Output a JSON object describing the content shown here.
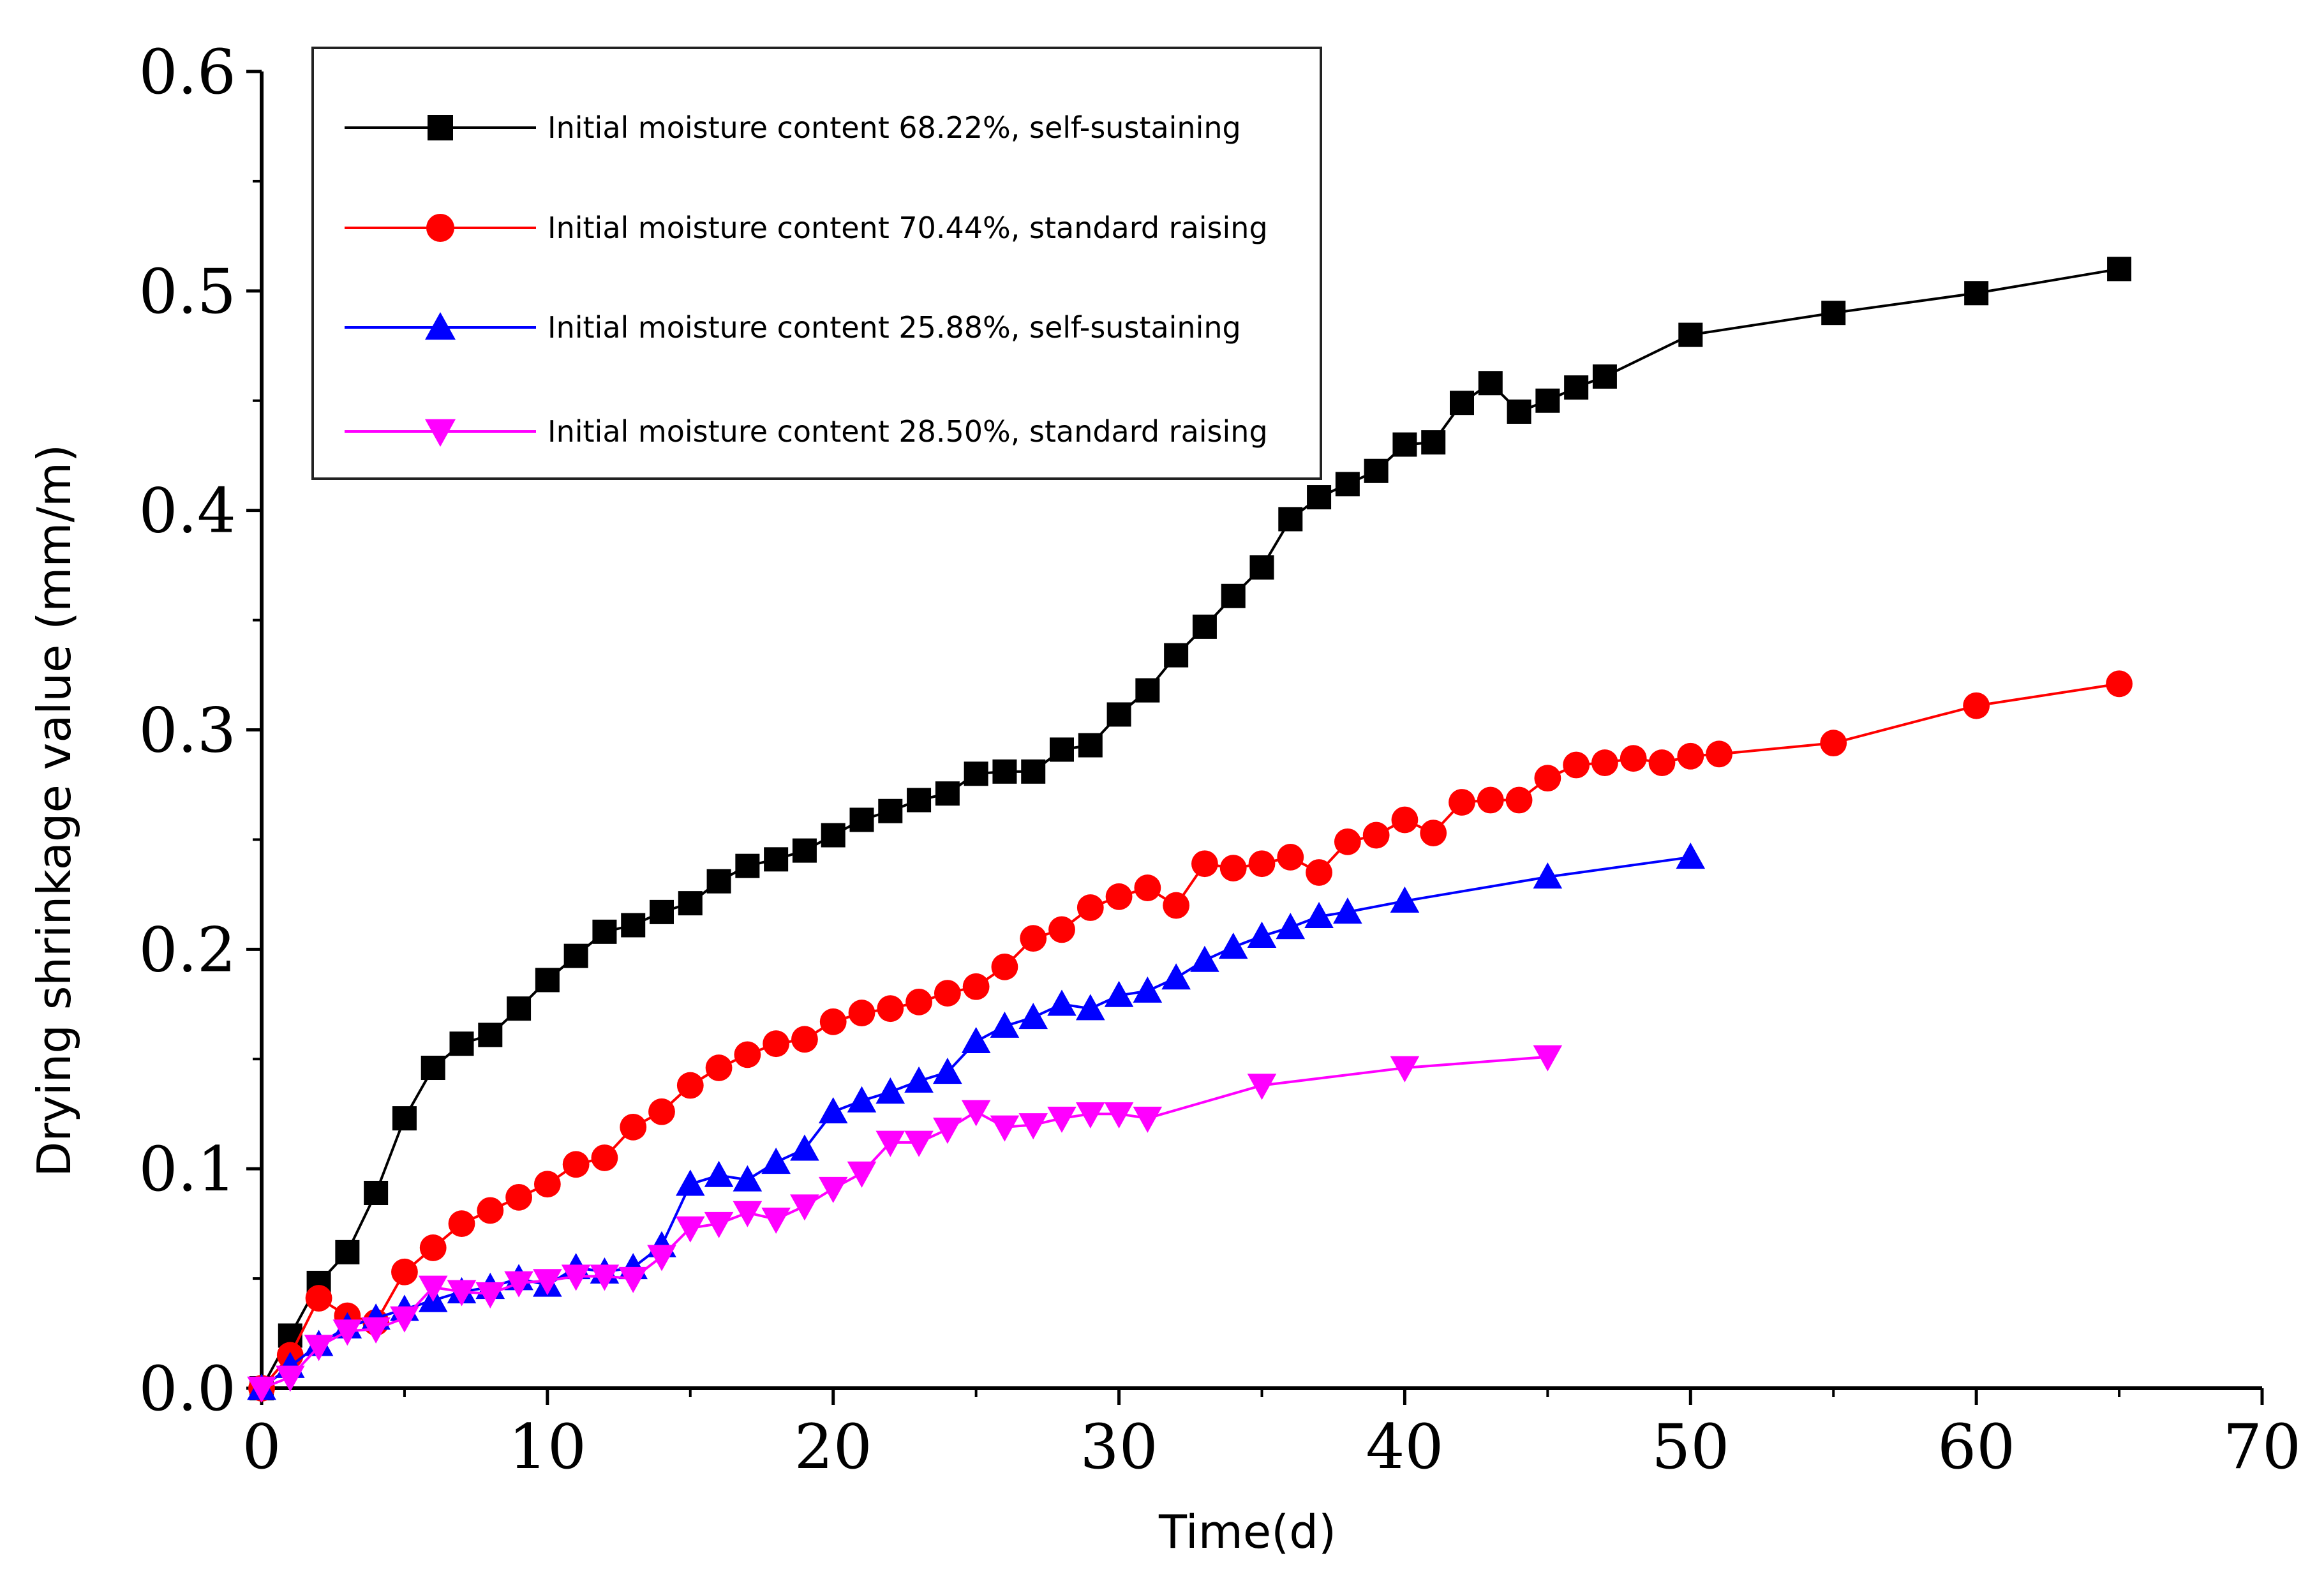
{
  "chart_data": {
    "type": "line",
    "title": "",
    "xlabel": "Time(d)",
    "ylabel": "Drying shrinkage value (mm/m)",
    "xlim": [
      0,
      70
    ],
    "ylim": [
      0,
      0.6
    ],
    "x_ticks": [
      0,
      10,
      20,
      30,
      40,
      50,
      60,
      70
    ],
    "y_ticks": [
      0.0,
      0.1,
      0.2,
      0.3,
      0.4,
      0.5,
      0.6
    ],
    "x_tick_labels": [
      "0",
      "10",
      "20",
      "30",
      "40",
      "50",
      "60",
      "70"
    ],
    "y_tick_labels": [
      "0.0",
      "0.1",
      "0.2",
      "0.3",
      "0.4",
      "0.5",
      "0.6"
    ],
    "grid": false,
    "legend_position": "top-left",
    "series": [
      {
        "name": "Initial moisture content 68.22%, self-sustaining",
        "color": "#000000",
        "marker": "square",
        "x": [
          0,
          1,
          2,
          3,
          4,
          5,
          6,
          7,
          8,
          9,
          10,
          11,
          12,
          13,
          14,
          15,
          16,
          17,
          18,
          19,
          20,
          21,
          22,
          23,
          24,
          25,
          26,
          27,
          28,
          29,
          30,
          31,
          32,
          33,
          34,
          35,
          36,
          37,
          38,
          39,
          40,
          41,
          42,
          43,
          44,
          45,
          46,
          47,
          50,
          55,
          60,
          65
        ],
        "y": [
          0.0,
          0.024,
          0.048,
          0.062,
          0.089,
          0.123,
          0.146,
          0.157,
          0.161,
          0.173,
          0.186,
          0.197,
          0.208,
          0.211,
          0.217,
          0.221,
          0.231,
          0.238,
          0.241,
          0.245,
          0.252,
          0.259,
          0.263,
          0.268,
          0.271,
          0.28,
          0.281,
          0.281,
          0.291,
          0.293,
          0.307,
          0.318,
          0.334,
          0.347,
          0.361,
          0.374,
          0.396,
          0.406,
          0.412,
          0.418,
          0.43,
          0.431,
          0.449,
          0.458,
          0.445,
          0.45,
          0.456,
          0.461,
          0.48,
          0.49,
          0.499,
          0.51
        ]
      },
      {
        "name": "Initial moisture content 70.44%, standard raising",
        "color": "#ff0000",
        "marker": "circle",
        "x": [
          0,
          1,
          2,
          3,
          4,
          5,
          6,
          7,
          8,
          9,
          10,
          11,
          12,
          13,
          14,
          15,
          16,
          17,
          18,
          19,
          20,
          21,
          22,
          23,
          24,
          25,
          26,
          27,
          28,
          29,
          30,
          31,
          32,
          33,
          34,
          35,
          36,
          37,
          38,
          39,
          40,
          41,
          42,
          43,
          44,
          45,
          46,
          47,
          48,
          49,
          50,
          51,
          55,
          60,
          65
        ],
        "y": [
          0.0,
          0.015,
          0.041,
          0.033,
          0.03,
          0.053,
          0.064,
          0.075,
          0.081,
          0.087,
          0.093,
          0.102,
          0.105,
          0.119,
          0.126,
          0.138,
          0.146,
          0.152,
          0.157,
          0.159,
          0.167,
          0.171,
          0.173,
          0.176,
          0.18,
          0.183,
          0.192,
          0.205,
          0.209,
          0.219,
          0.224,
          0.228,
          0.22,
          0.239,
          0.237,
          0.239,
          0.242,
          0.235,
          0.249,
          0.252,
          0.259,
          0.253,
          0.267,
          0.268,
          0.268,
          0.278,
          0.284,
          0.285,
          0.287,
          0.285,
          0.288,
          0.289,
          0.294,
          0.311,
          0.321
        ]
      },
      {
        "name": "Initial moisture content 25.88%, self-sustaining",
        "color": "#0000ff",
        "marker": "triangle-up",
        "x": [
          0,
          1,
          2,
          3,
          4,
          5,
          6,
          7,
          8,
          9,
          10,
          11,
          12,
          13,
          14,
          15,
          16,
          17,
          18,
          19,
          20,
          21,
          22,
          23,
          24,
          25,
          26,
          27,
          28,
          29,
          30,
          31,
          32,
          33,
          34,
          35,
          36,
          37,
          38,
          40,
          45,
          50
        ],
        "y": [
          0.0,
          0.01,
          0.02,
          0.028,
          0.032,
          0.036,
          0.04,
          0.044,
          0.046,
          0.05,
          0.047,
          0.055,
          0.053,
          0.055,
          0.065,
          0.093,
          0.097,
          0.095,
          0.103,
          0.109,
          0.126,
          0.131,
          0.135,
          0.14,
          0.144,
          0.158,
          0.165,
          0.169,
          0.175,
          0.173,
          0.179,
          0.181,
          0.187,
          0.195,
          0.201,
          0.206,
          0.21,
          0.215,
          0.217,
          0.222,
          0.233,
          0.242
        ]
      },
      {
        "name": "Initial moisture content 28.50%, standard raising",
        "color": "#ff00ff",
        "marker": "triangle-down",
        "x": [
          0,
          1,
          2,
          3,
          4,
          5,
          6,
          7,
          8,
          9,
          10,
          11,
          12,
          13,
          14,
          15,
          16,
          17,
          18,
          19,
          20,
          21,
          22,
          23,
          24,
          25,
          26,
          27,
          28,
          29,
          30,
          31,
          35,
          40,
          45
        ],
        "y": [
          0.0,
          0.005,
          0.019,
          0.026,
          0.027,
          0.032,
          0.046,
          0.044,
          0.043,
          0.048,
          0.049,
          0.051,
          0.051,
          0.05,
          0.06,
          0.073,
          0.075,
          0.08,
          0.077,
          0.083,
          0.091,
          0.098,
          0.112,
          0.112,
          0.118,
          0.126,
          0.119,
          0.12,
          0.123,
          0.125,
          0.125,
          0.123,
          0.138,
          0.146,
          0.151
        ]
      }
    ]
  }
}
